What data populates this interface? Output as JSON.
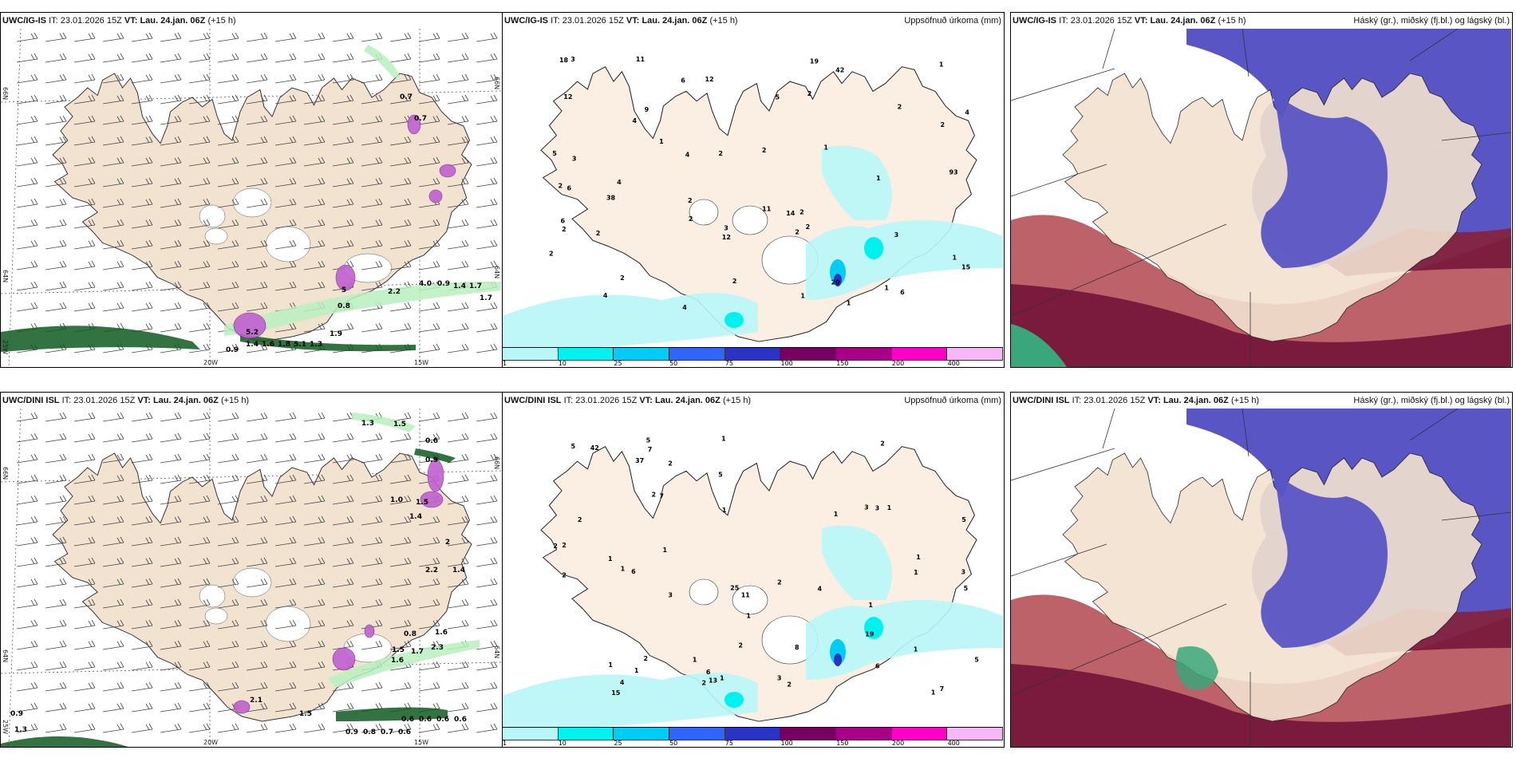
{
  "panels": [
    {
      "model": "UWC/IG-IS",
      "it_label": "IT:",
      "it": "23.01.2026 15Z",
      "vt_label": "VT:",
      "vt": "Lau. 24.jan. 06Z",
      "lead": "(+15 h)",
      "title_right": "",
      "type": "wind-precip",
      "axis_labels": {
        "lat_left": [
          "66N",
          "64N",
          "25W"
        ],
        "lat_right": [
          "66N",
          "64N"
        ],
        "lon_bottom": [
          "20W",
          "15W"
        ]
      },
      "contour_labels": [
        "0.7",
        "0.7",
        "5",
        "0.8",
        "5.2",
        "0.9",
        "1.4",
        "1.6",
        "1.8",
        "5.1",
        "1.3",
        "1.9",
        "2.2",
        "4.0",
        "0.9",
        "1.4",
        "1.7",
        "1.7"
      ]
    },
    {
      "model": "UWC/IG-IS",
      "it_label": "IT:",
      "it": "23.01.2026 15Z",
      "vt_label": "VT:",
      "vt": "Lau. 24.jan. 06Z",
      "lead": "(+15 h)",
      "title_right": "Uppsöfnuð úrkoma (mm)",
      "type": "accum-precip",
      "point_values": [
        "2",
        "3",
        "1",
        "2",
        "2",
        "2",
        "1",
        "2",
        "4",
        "2",
        "2",
        "5",
        "2",
        "3",
        "3",
        "1",
        "1",
        "2",
        "4",
        "4",
        "6",
        "14",
        "12",
        "4",
        "18",
        "19",
        "20",
        "6",
        "38",
        "15",
        "93",
        "2",
        "12",
        "12",
        "11",
        "11",
        "1",
        "2",
        "6",
        "9",
        "4",
        "5",
        "4",
        "6",
        "42",
        "1",
        "1",
        "1",
        "2",
        "2",
        "2",
        "2",
        "2",
        "3"
      ]
    },
    {
      "model": "UWC/IG-IS",
      "it_label": "IT:",
      "it": "23.01.2026 15Z",
      "vt_label": "VT:",
      "vt": "Lau. 24.jan. 06Z",
      "lead": "(+15 h)",
      "title_right": "Háský (gr.), miðský (fj.bl.) og lágský (bl.)",
      "type": "clouds"
    },
    {
      "model": "UWC/DINI ISL",
      "it_label": "IT:",
      "it": "23.01.2026 15Z",
      "vt_label": "VT:",
      "vt": "Lau. 24.jan. 06Z",
      "lead": "(+15 h)",
      "title_right": "",
      "type": "wind-precip",
      "axis_labels": {
        "lat_left": [
          "66N",
          "64N",
          "25W"
        ],
        "lat_right": [
          "66N",
          "64N"
        ],
        "lon_bottom": [
          "20W",
          "15W"
        ]
      },
      "contour_labels": [
        "1.3",
        "1.5",
        "0.6",
        "0.9",
        "1.0",
        "1.5",
        "1.4",
        "2",
        "2.2",
        "1.4",
        "0.8",
        "1.6",
        "1.5",
        "1.7",
        "2.3",
        "1.6",
        "0.9",
        "0.8",
        "0.7",
        "0.6",
        "0.6",
        "0.6",
        "0.6",
        "0.6",
        "2.1",
        "1.5",
        "0.9",
        "1.3"
      ]
    },
    {
      "model": "UWC/DINI ISL",
      "it_label": "IT:",
      "it": "23.01.2026 15Z",
      "vt_label": "VT:",
      "vt": "Lau. 24.jan. 06Z",
      "lead": "(+15 h)",
      "title_right": "Uppsöfnuð úrkoma (mm)",
      "type": "accum-precip",
      "point_values": [
        "1",
        "2",
        "1",
        "2",
        "2",
        "2",
        "1",
        "2",
        "3",
        "1",
        "1",
        "2",
        "1",
        "1",
        "2",
        "5",
        "2",
        "5",
        "5",
        "4",
        "6",
        "1",
        "4",
        "6",
        "15",
        "19",
        "25",
        "1",
        "1",
        "3",
        "42",
        "2",
        "1",
        "7",
        "6",
        "13",
        "8",
        "11",
        "1",
        "1",
        "1",
        "5",
        "5",
        "7",
        "7",
        "37",
        "5",
        "3",
        "3",
        "1",
        "2",
        "1",
        "2",
        "2",
        "3",
        "1"
      ]
    },
    {
      "model": "UWC/DINI ISL",
      "it_label": "IT:",
      "it": "23.01.2026 15Z",
      "vt_label": "VT:",
      "vt": "Lau. 24.jan. 06Z",
      "lead": "(+15 h)",
      "title_right": "Háský (gr.), miðský (fj.bl.) og lágský (bl.)",
      "type": "clouds"
    }
  ],
  "precip_legend": {
    "labels": [
      "1",
      "10",
      "25",
      "50",
      "75",
      "100",
      "150",
      "200",
      "400"
    ],
    "colors": [
      "#b8f6f8",
      "#00f2f0",
      "#00ccf5",
      "#2f66f7",
      "#2a33c3",
      "#760060",
      "#a60086",
      "#ff00c8",
      "#f6b8f6"
    ]
  },
  "colors": {
    "land": "#f2e2d0",
    "land_precip": "#fbeee2",
    "sea": "#ffffff",
    "low_cloud": "#7a1a3c",
    "low_cloud_light": "#b85a60",
    "mid_cloud": "#5a55c4",
    "high_cloud": "#3aa77a",
    "precip_green": "#0f5a20",
    "precip_lightgreen": "#b8f0c0",
    "snow_pink": "#c060d0"
  }
}
